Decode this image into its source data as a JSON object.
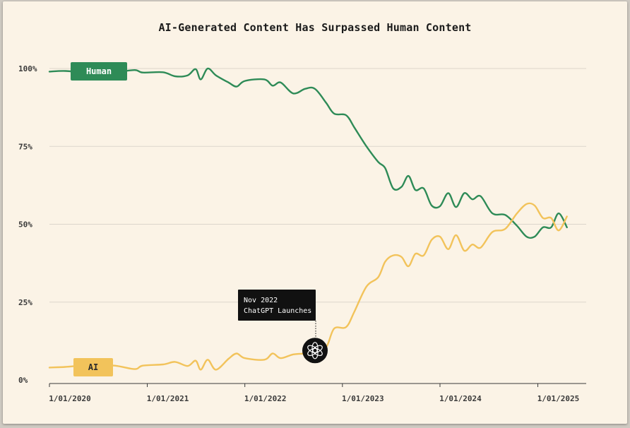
{
  "chart_data": {
    "type": "line",
    "title": "AI-Generated Content Has Surpassed Human Content",
    "xlabel": "",
    "ylabel": "",
    "x_ticks": [
      "1/01/2020",
      "1/01/2021",
      "1/01/2022",
      "1/01/2023",
      "1/01/2024",
      "1/01/2025"
    ],
    "y_ticks": [
      "0%",
      "25%",
      "50%",
      "75%",
      "100%"
    ],
    "ylim": [
      0,
      100
    ],
    "xlim": [
      "2020-01-01",
      "2025-07-01"
    ],
    "grid": true,
    "series": [
      {
        "name": "Human",
        "color": "#2e8b57",
        "points": [
          [
            "2020-01-01",
            99.0
          ],
          [
            "2020-03-01",
            99.2
          ],
          [
            "2020-06-01",
            98.6
          ],
          [
            "2020-09-01",
            98.8
          ],
          [
            "2020-11-15",
            99.5
          ],
          [
            "2020-12-15",
            98.7
          ],
          [
            "2021-03-01",
            98.8
          ],
          [
            "2021-04-15",
            97.5
          ],
          [
            "2021-06-01",
            97.8
          ],
          [
            "2021-07-01",
            99.8
          ],
          [
            "2021-07-20",
            96.5
          ],
          [
            "2021-08-15",
            100.0
          ],
          [
            "2021-09-15",
            97.8
          ],
          [
            "2021-11-01",
            95.5
          ],
          [
            "2021-12-01",
            94.2
          ],
          [
            "2022-01-01",
            96.0
          ],
          [
            "2022-03-15",
            96.5
          ],
          [
            "2022-04-15",
            94.5
          ],
          [
            "2022-05-15",
            95.5
          ],
          [
            "2022-07-01",
            92.0
          ],
          [
            "2022-08-15",
            93.5
          ],
          [
            "2022-09-20",
            93.5
          ],
          [
            "2022-11-01",
            89.0
          ],
          [
            "2022-12-01",
            85.5
          ],
          [
            "2023-01-15",
            85.0
          ],
          [
            "2023-02-15",
            81.0
          ],
          [
            "2023-04-01",
            75.0
          ],
          [
            "2023-05-15",
            70.0
          ],
          [
            "2023-06-10",
            68.0
          ],
          [
            "2023-07-10",
            61.5
          ],
          [
            "2023-08-10",
            62.0
          ],
          [
            "2023-09-05",
            65.5
          ],
          [
            "2023-10-01",
            61.0
          ],
          [
            "2023-11-01",
            61.5
          ],
          [
            "2023-12-01",
            56.0
          ],
          [
            "2024-01-01",
            55.8
          ],
          [
            "2024-02-01",
            60.0
          ],
          [
            "2024-03-01",
            55.5
          ],
          [
            "2024-04-01",
            60.0
          ],
          [
            "2024-05-01",
            58.0
          ],
          [
            "2024-06-01",
            59.0
          ],
          [
            "2024-07-15",
            53.5
          ],
          [
            "2024-09-01",
            53.0
          ],
          [
            "2024-10-15",
            49.5
          ],
          [
            "2024-11-20",
            46.0
          ],
          [
            "2024-12-20",
            46.0
          ],
          [
            "2025-01-20",
            49.0
          ],
          [
            "2025-02-20",
            49.0
          ],
          [
            "2025-03-20",
            53.5
          ],
          [
            "2025-04-20",
            49.0
          ]
        ]
      },
      {
        "name": "AI",
        "color": "#f2c35b",
        "points": [
          [
            "2020-01-01",
            4.0
          ],
          [
            "2020-03-01",
            4.2
          ],
          [
            "2020-06-01",
            4.8
          ],
          [
            "2020-09-01",
            4.6
          ],
          [
            "2020-11-15",
            3.5
          ],
          [
            "2020-12-15",
            4.6
          ],
          [
            "2021-03-01",
            5.0
          ],
          [
            "2021-04-15",
            5.8
          ],
          [
            "2021-06-01",
            4.5
          ],
          [
            "2021-07-01",
            6.2
          ],
          [
            "2021-07-20",
            3.3
          ],
          [
            "2021-08-15",
            6.5
          ],
          [
            "2021-09-15",
            3.3
          ],
          [
            "2021-11-01",
            6.8
          ],
          [
            "2021-12-01",
            8.5
          ],
          [
            "2022-01-01",
            7.0
          ],
          [
            "2022-03-15",
            6.5
          ],
          [
            "2022-04-15",
            8.5
          ],
          [
            "2022-05-15",
            7.0
          ],
          [
            "2022-07-01",
            8.2
          ],
          [
            "2022-08-15",
            8.5
          ],
          [
            "2022-09-20",
            9.0
          ],
          [
            "2022-11-01",
            10.5
          ],
          [
            "2022-12-01",
            16.5
          ],
          [
            "2023-01-15",
            17.0
          ],
          [
            "2023-02-15",
            22.0
          ],
          [
            "2023-04-01",
            30.0
          ],
          [
            "2023-05-15",
            33.0
          ],
          [
            "2023-06-10",
            38.0
          ],
          [
            "2023-07-10",
            40.0
          ],
          [
            "2023-08-10",
            39.5
          ],
          [
            "2023-09-05",
            36.5
          ],
          [
            "2023-10-01",
            40.5
          ],
          [
            "2023-11-01",
            40.0
          ],
          [
            "2023-12-01",
            45.0
          ],
          [
            "2024-01-01",
            46.0
          ],
          [
            "2024-02-01",
            42.0
          ],
          [
            "2024-03-01",
            46.5
          ],
          [
            "2024-04-01",
            41.5
          ],
          [
            "2024-05-01",
            43.5
          ],
          [
            "2024-06-01",
            42.5
          ],
          [
            "2024-07-15",
            47.5
          ],
          [
            "2024-09-01",
            48.5
          ],
          [
            "2024-10-15",
            53.5
          ],
          [
            "2024-11-20",
            56.5
          ],
          [
            "2024-12-20",
            56.0
          ],
          [
            "2025-01-20",
            52.0
          ],
          [
            "2025-02-20",
            52.0
          ],
          [
            "2025-03-20",
            48.0
          ],
          [
            "2025-04-20",
            52.5
          ]
        ]
      }
    ],
    "annotation": {
      "line1": "Nov 2022",
      "line2": "ChatGPT Launches",
      "x": "2022-08-01",
      "y": 9,
      "icon": "openai-logo-icon"
    },
    "series_labels": {
      "human": {
        "text": "Human",
        "bg": "#2e8b57",
        "fg": "#ffffff"
      },
      "ai": {
        "text": "AI",
        "bg": "#f2c35b",
        "fg": "#2b2b2b"
      }
    }
  }
}
